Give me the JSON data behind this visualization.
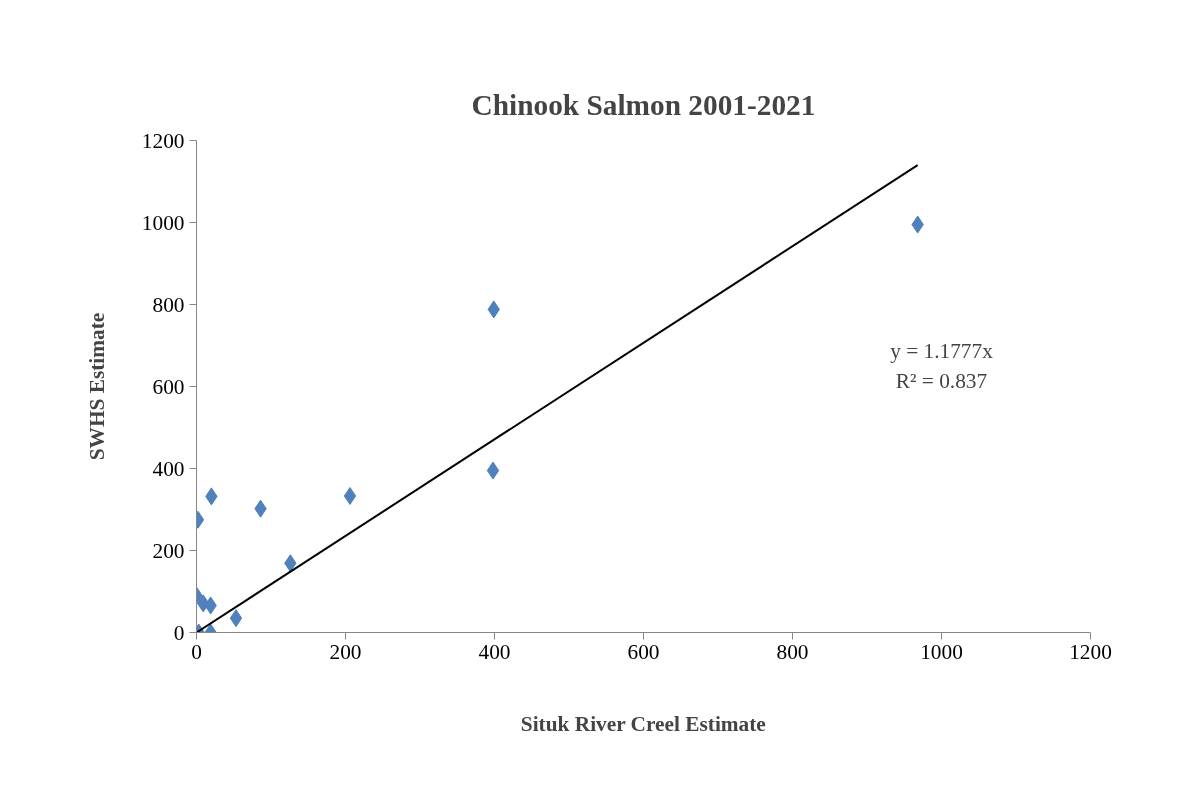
{
  "chart_data": {
    "type": "scatter",
    "title": "Chinook Salmon 2001-2021",
    "xlabel": "Situk River Creel Estimate",
    "ylabel": "SWHS Estimate",
    "xlim": [
      0,
      1200
    ],
    "ylim": [
      0,
      1200
    ],
    "xticks": [
      0,
      200,
      400,
      600,
      800,
      1000,
      1200
    ],
    "yticks": [
      0,
      200,
      400,
      600,
      800,
      1000,
      1200
    ],
    "grid": false,
    "series": [
      {
        "color": "#4f81bd",
        "marker": "diamond",
        "x": [
          2,
          20,
          86,
          206,
          126,
          0,
          9,
          19,
          53,
          3,
          19,
          399,
          398,
          968
        ],
        "values": [
          275,
          332,
          302,
          333,
          169,
          90,
          71,
          66,
          35,
          0,
          0,
          788,
          395,
          995
        ]
      },
      {
        "type": "line",
        "color": "#000000",
        "line_style": "solid",
        "x": [
          0,
          968
        ],
        "values": [
          0,
          1140
        ]
      }
    ],
    "annotations": [
      "y = 1.1777x",
      "R² = 0.837"
    ]
  }
}
